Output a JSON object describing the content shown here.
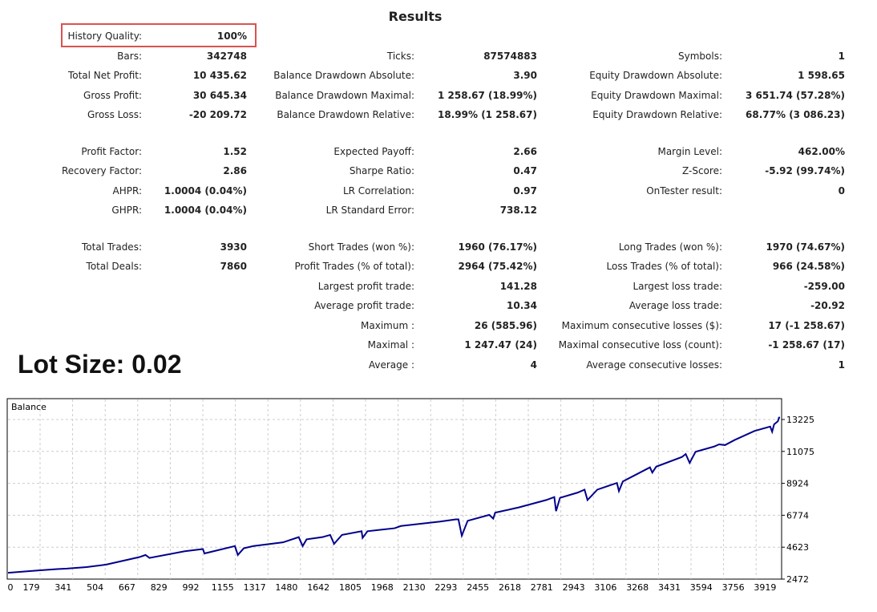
{
  "title": "Results",
  "lot_size_label": "Lot Size: 0.02",
  "highlight_color": "#d9534f",
  "rows": [
    {
      "c": [
        [
          "History Quality:",
          "100%"
        ],
        null,
        null
      ]
    },
    {
      "c": [
        [
          "Bars:",
          "342748"
        ],
        [
          "Ticks:",
          "87574883"
        ],
        [
          "Symbols:",
          "1"
        ]
      ]
    },
    {
      "c": [
        [
          "Total Net Profit:",
          "10 435.62"
        ],
        [
          "Balance Drawdown Absolute:",
          "3.90"
        ],
        [
          "Equity Drawdown Absolute:",
          "1 598.65"
        ]
      ]
    },
    {
      "c": [
        [
          "Gross Profit:",
          "30 645.34"
        ],
        [
          "Balance Drawdown Maximal:",
          "1 258.67 (18.99%)"
        ],
        [
          "Equity Drawdown Maximal:",
          "3 651.74 (57.28%)"
        ]
      ]
    },
    {
      "c": [
        [
          "Gross Loss:",
          "-20 209.72"
        ],
        [
          "Balance Drawdown Relative:",
          "18.99% (1 258.67)"
        ],
        [
          "Equity Drawdown Relative:",
          "68.77% (3 086.23)"
        ]
      ]
    },
    {
      "c": [
        [
          "Profit Factor:",
          "1.52"
        ],
        [
          "Expected Payoff:",
          "2.66"
        ],
        [
          "Margin Level:",
          "462.00%"
        ]
      ]
    },
    {
      "c": [
        [
          "Recovery Factor:",
          "2.86"
        ],
        [
          "Sharpe Ratio:",
          "0.47"
        ],
        [
          "Z-Score:",
          "-5.92 (99.74%)"
        ]
      ]
    },
    {
      "c": [
        [
          "AHPR:",
          "1.0004 (0.04%)"
        ],
        [
          "LR Correlation:",
          "0.97"
        ],
        [
          "OnTester result:",
          "0"
        ]
      ]
    },
    {
      "c": [
        [
          "GHPR:",
          "1.0004 (0.04%)"
        ],
        [
          "LR Standard Error:",
          "738.12"
        ],
        null
      ]
    },
    {
      "c": [
        [
          "Total Trades:",
          "3930"
        ],
        [
          "Short Trades (won %):",
          "1960 (76.17%)"
        ],
        [
          "Long Trades (won %):",
          "1970 (74.67%)"
        ]
      ]
    },
    {
      "c": [
        [
          "Total Deals:",
          "7860"
        ],
        [
          "Profit Trades (% of total):",
          "2964 (75.42%)"
        ],
        [
          "Loss Trades (% of total):",
          "966 (24.58%)"
        ]
      ]
    },
    {
      "c": [
        null,
        [
          "Largest profit trade:",
          "141.28"
        ],
        [
          "Largest loss trade:",
          "-259.00"
        ]
      ]
    },
    {
      "c": [
        null,
        [
          "Average profit trade:",
          "10.34"
        ],
        [
          "Average loss trade:",
          "-20.92"
        ]
      ]
    },
    {
      "c": [
        null,
        [
          "Maximum :",
          "26 (585.96)"
        ],
        [
          "Maximum consecutive losses ($):",
          "17 (-1 258.67)"
        ]
      ]
    },
    {
      "c": [
        null,
        [
          "Maximal :",
          "1 247.47 (24)"
        ],
        [
          "Maximal consecutive loss (count):",
          "-1 258.67 (17)"
        ]
      ]
    },
    {
      "c": [
        null,
        [
          "Average :",
          "4"
        ],
        [
          "Average consecutive losses:",
          "1"
        ]
      ]
    }
  ],
  "chart_data": {
    "type": "line",
    "title": "Balance",
    "line_color": "#00008b",
    "grid": true,
    "ylim": [
      2472,
      13225
    ],
    "y_ticks": [
      "13225",
      "11075",
      "8924",
      "6774",
      "4623",
      "2472"
    ],
    "x_ticks": [
      "0",
      "179",
      "341",
      "504",
      "667",
      "829",
      "992",
      "1155",
      "1317",
      "1480",
      "1642",
      "1805",
      "1968",
      "2130",
      "2293",
      "2455",
      "2618",
      "2781",
      "2943",
      "3106",
      "3268",
      "3431",
      "3594",
      "3756",
      "3919"
    ],
    "x": [
      0,
      150,
      250,
      300,
      400,
      500,
      667,
      700,
      720,
      900,
      992,
      1000,
      1155,
      1170,
      1200,
      1250,
      1400,
      1480,
      1500,
      1520,
      1600,
      1640,
      1660,
      1700,
      1800,
      1805,
      1830,
      1900,
      1968,
      2000,
      2100,
      2200,
      2280,
      2293,
      2310,
      2340,
      2450,
      2470,
      2480,
      2600,
      2740,
      2781,
      2790,
      2810,
      2900,
      2935,
      2950,
      3000,
      3100,
      3110,
      3130,
      3268,
      3280,
      3300,
      3431,
      3450,
      3470,
      3500,
      3594,
      3620,
      3650,
      3700,
      3800,
      3880,
      3890,
      3900,
      3919,
      3925,
      3930
    ],
    "y": [
      2900,
      3050,
      3150,
      3180,
      3280,
      3450,
      3950,
      4100,
      3900,
      4350,
      4500,
      4200,
      4700,
      4100,
      4550,
      4700,
      4950,
      5300,
      4700,
      5150,
      5300,
      5450,
      4850,
      5450,
      5700,
      5250,
      5700,
      5800,
      5900,
      6050,
      6200,
      6350,
      6500,
      6500,
      5400,
      6400,
      6800,
      6550,
      6950,
      7300,
      7800,
      8000,
      7050,
      7950,
      8300,
      8500,
      7800,
      8500,
      8950,
      8400,
      9050,
      10000,
      9650,
      10050,
      10700,
      10900,
      10300,
      11050,
      11400,
      11550,
      11500,
      11850,
      12450,
      12750,
      12400,
      12900,
      13100,
      13350,
      13350
    ]
  }
}
